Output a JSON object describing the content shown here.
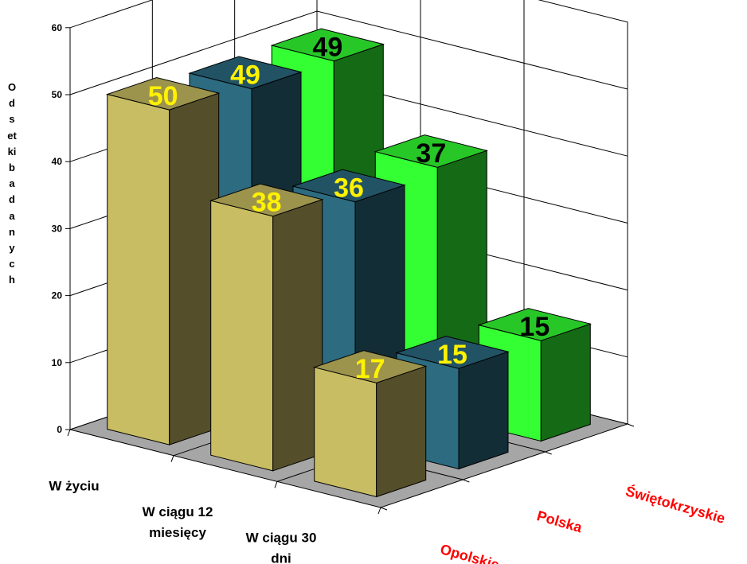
{
  "chart_data": {
    "type": "bar",
    "subtype": "3d-grouped-bar",
    "title": "",
    "ylabel": "Odsetki badanych",
    "xlabel": "",
    "ylim": [
      0,
      60
    ],
    "yticks": [
      "0",
      "10",
      "20",
      "30",
      "40",
      "50",
      "60"
    ],
    "grid": true,
    "categories": [
      "W życiu",
      "W ciągu 12 miesięcy",
      "W ciągu 30 dni"
    ],
    "category_labels": [
      [
        "W życiu"
      ],
      [
        "W ciągu 12",
        "miesięcy"
      ],
      [
        "W ciągu 30",
        "dni"
      ]
    ],
    "series": [
      {
        "name": "Opolskie",
        "values": [
          50,
          38,
          17
        ],
        "color": "#C8BD63",
        "label_color": "#FFF200"
      },
      {
        "name": "Polska",
        "values": [
          49,
          36,
          15
        ],
        "color": "#2C6B80",
        "label_color": "#FFF200"
      },
      {
        "name": "Świętokrzyskie",
        "values": [
          49,
          37,
          15
        ],
        "color": "#33FF33",
        "label_color": "#000000"
      }
    ],
    "series_label_color": "#FF0000",
    "data_labels": true
  }
}
